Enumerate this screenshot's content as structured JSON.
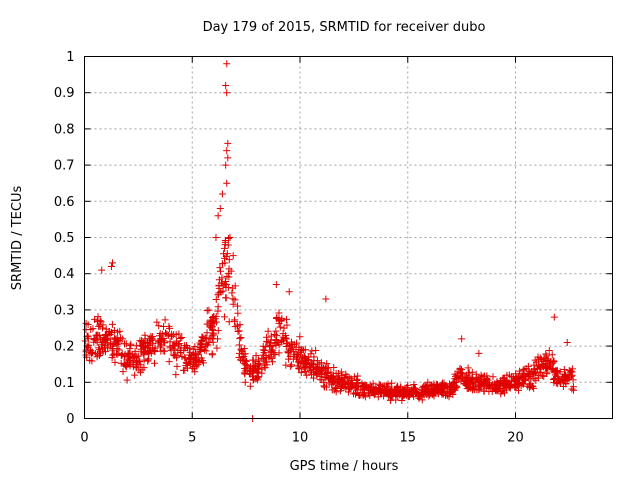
{
  "chart_data": {
    "type": "scatter",
    "title": "Day 179 of 2015, SRMTID for receiver dubo",
    "xlabel": "GPS time / hours",
    "ylabel": "SRMTID / TECUs",
    "xlim": [
      0,
      24.5
    ],
    "ylim": [
      0,
      1
    ],
    "xticks": [
      0,
      5,
      10,
      15,
      20
    ],
    "xtick_labels": [
      "0",
      "5",
      "10",
      "15",
      "20"
    ],
    "yticks": [
      0,
      0.1,
      0.2,
      0.3,
      0.4,
      0.5,
      0.6,
      0.7,
      0.8,
      0.9,
      1
    ],
    "ytick_labels": [
      "0",
      "0.1",
      "0.2",
      "0.3",
      "0.4",
      "0.5",
      "0.6",
      "0.7",
      "0.8",
      "0.9",
      "1"
    ],
    "grid": true,
    "marker": "+",
    "series": [
      {
        "name": "SRMTID",
        "color": "#e00000",
        "profile_x": [
          0,
          0.5,
          1,
          1.5,
          2,
          2.5,
          3,
          3.5,
          4,
          4.5,
          5,
          5.5,
          6,
          6.3,
          6.6,
          6.9,
          7.2,
          7.5,
          8,
          8.5,
          9,
          9.5,
          10,
          10.5,
          11,
          11.5,
          12,
          13,
          14,
          15,
          16,
          17,
          17.5,
          18,
          19,
          20,
          21,
          21.5,
          22,
          22.7
        ],
        "profile_y": [
          0.2,
          0.21,
          0.22,
          0.2,
          0.16,
          0.17,
          0.2,
          0.21,
          0.2,
          0.18,
          0.17,
          0.2,
          0.26,
          0.35,
          0.4,
          0.3,
          0.22,
          0.14,
          0.13,
          0.2,
          0.24,
          0.2,
          0.17,
          0.15,
          0.13,
          0.11,
          0.1,
          0.08,
          0.075,
          0.07,
          0.075,
          0.08,
          0.12,
          0.1,
          0.09,
          0.1,
          0.13,
          0.16,
          0.11,
          0.11
        ],
        "spread": 0.12,
        "point_count": 1500,
        "outliers": [
          {
            "x": 6.6,
            "y": 0.98
          },
          {
            "x": 6.55,
            "y": 0.92
          },
          {
            "x": 6.6,
            "y": 0.9
          },
          {
            "x": 6.65,
            "y": 0.76
          },
          {
            "x": 6.6,
            "y": 0.74
          },
          {
            "x": 6.65,
            "y": 0.72
          },
          {
            "x": 6.55,
            "y": 0.7
          },
          {
            "x": 6.6,
            "y": 0.65
          },
          {
            "x": 6.4,
            "y": 0.62
          },
          {
            "x": 6.2,
            "y": 0.56
          },
          {
            "x": 6.3,
            "y": 0.58
          },
          {
            "x": 6.1,
            "y": 0.5
          },
          {
            "x": 6.75,
            "y": 0.5
          },
          {
            "x": 6.9,
            "y": 0.45
          },
          {
            "x": 6.5,
            "y": 0.47
          },
          {
            "x": 1.3,
            "y": 0.43
          },
          {
            "x": 1.25,
            "y": 0.42
          },
          {
            "x": 0.8,
            "y": 0.41
          },
          {
            "x": 8.9,
            "y": 0.37
          },
          {
            "x": 11.2,
            "y": 0.33
          },
          {
            "x": 17.5,
            "y": 0.22
          },
          {
            "x": 21.8,
            "y": 0.28
          },
          {
            "x": 22.4,
            "y": 0.21
          },
          {
            "x": 7.8,
            "y": 0.0
          },
          {
            "x": 18.3,
            "y": 0.18
          },
          {
            "x": 9.5,
            "y": 0.35
          }
        ]
      }
    ]
  }
}
